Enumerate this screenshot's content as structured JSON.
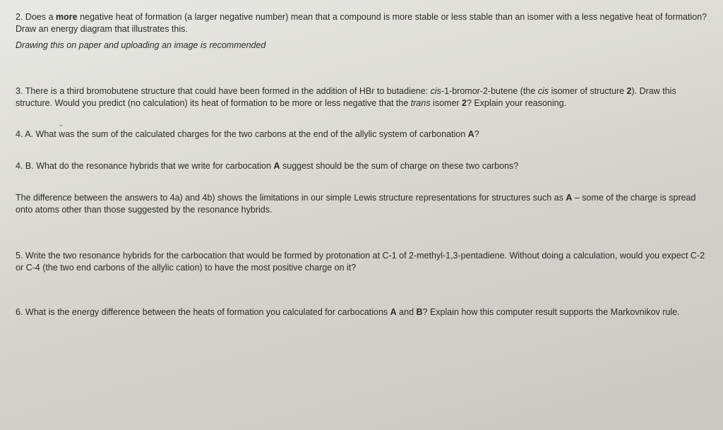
{
  "q2": {
    "num": "2.",
    "pre": "Does a ",
    "more": "more",
    "post": " negative heat of formation (a larger negative number) mean that a compound is more stable or less stable than an isomer with a less negative heat of formation? Draw an energy diagram that illustrates this.",
    "instruction": "Drawing this on paper and uploading an image is recommended"
  },
  "q3": {
    "num": "3.",
    "part1": "There is a third bromobutene structure that could have been formed in the addition of HBr to butadiene: ",
    "cis1": "cis",
    "part2": "-1-bromor-2-butene (the ",
    "cis2": "cis",
    "part3": " isomer of structure ",
    "two": "2",
    "part4": "). Draw this structure. Would you predict (no calculation) its heat of formation to be more or less negative that the ",
    "trans": "trans",
    "part5": " isomer ",
    "two_b": "2",
    "part6": "? Explain your reasoning."
  },
  "q4a": {
    "num": "4. A.",
    "part1": "What ",
    "was": "was",
    "part2": " the sum of the calculated charges for the two carbons at the end of the allylic system of carbonation ",
    "A": "A",
    "part3": "?"
  },
  "q4b": {
    "num": "4. B.",
    "part1": "What do the resonance hybrids that we write for carbocation ",
    "A": "A",
    "part2": " suggest should be the sum of charge on these two carbons?"
  },
  "note": {
    "part1": "The difference between the answers to 4a) and 4b) shows the limitations in our simple Lewis structure representations for structures such as ",
    "A": "A",
    "part2": " – some of the charge is spread onto atoms other than those suggested by the resonance hybrids."
  },
  "q5": {
    "num": "5.",
    "text": "Write the two resonance hybrids for the carbocation that would be formed by protonation at C-1 of 2-methyl-1,3-pentadiene. Without doing a calculation, would you expect C-2 or C-4 (the two end carbons of the allylic cation) to have the most positive charge on it?"
  },
  "q6": {
    "num": "6.",
    "part1": "What is the energy difference between the heats of formation you calculated for carbocations ",
    "A": "A",
    "part2": "  and ",
    "B": "B",
    "part3": "? Explain how this computer result supports the Markovnikov rule."
  }
}
